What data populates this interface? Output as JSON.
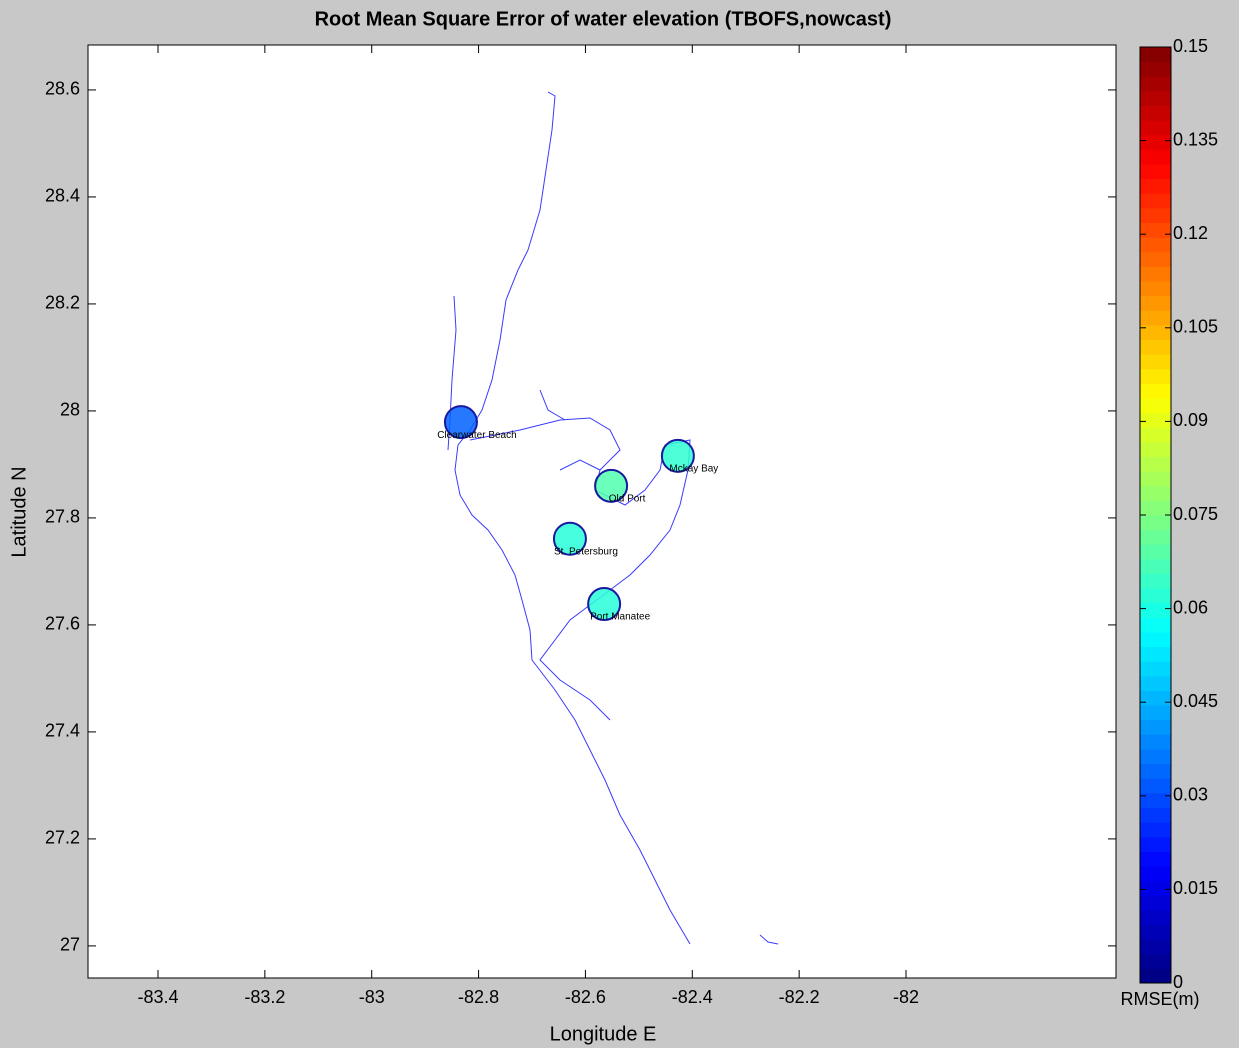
{
  "chart_data": {
    "type": "scatter",
    "title": "Root Mean Square Error of water elevation  (TBOFS,nowcast)",
    "x_label": "Longitude E",
    "y_label": "Latitude N",
    "labels": [
      "Clearwater Beach",
      "Old Port",
      "Mckay Bay",
      "St. Petersburg",
      "Port Manatee"
    ],
    "x": [
      -82.833,
      -82.552,
      -82.427,
      -82.629,
      -82.565
    ],
    "y": [
      27.979,
      27.86,
      27.916,
      27.761,
      27.639
    ],
    "values": [
      0.033,
      0.068,
      0.063,
      0.062,
      0.062
    ],
    "xlim": [
      -83.531,
      -81.607
    ],
    "ylim": [
      26.94,
      28.684
    ],
    "xticks": [
      -83.4,
      -83.2,
      -83,
      -82.8,
      -82.6,
      -82.4,
      -82.2,
      -82
    ],
    "yticks": [
      27,
      27.2,
      27.4,
      27.6,
      27.8,
      28,
      28.2,
      28.4,
      28.6
    ],
    "colorbar": {
      "label": "RMSE(m)",
      "colormap": "jet",
      "lim": [
        0,
        0.15
      ],
      "ticks": [
        0,
        0.015,
        0.03,
        0.045,
        0.06,
        0.075,
        0.09,
        0.105,
        0.12,
        0.135,
        0.15
      ]
    }
  }
}
